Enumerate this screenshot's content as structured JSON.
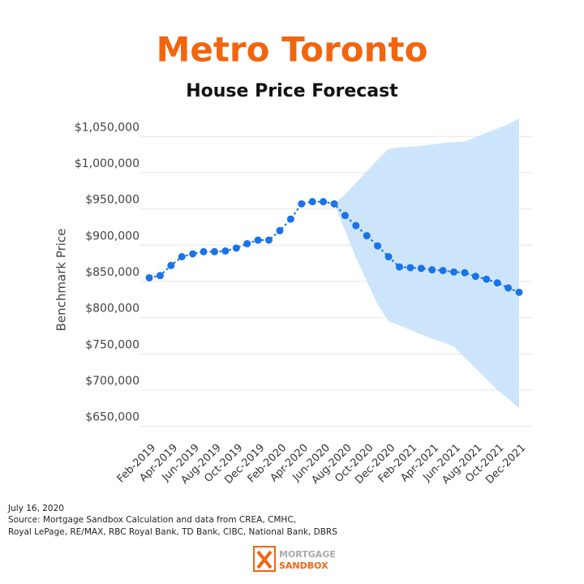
{
  "chart_data": {
    "type": "line",
    "title": "Metro Toronto",
    "subtitle": "House Price Forecast",
    "ylabel": "Benchmark Price",
    "categories": [
      "Feb-2019",
      null,
      "Apr-2019",
      null,
      "Jun-2019",
      null,
      "Aug-2019",
      null,
      "Oct-2019",
      null,
      "Dec-2019",
      null,
      "Feb-2020",
      null,
      "Apr-2020",
      null,
      "Jun-2020",
      null,
      "Aug-2020",
      null,
      "Oct-2020",
      null,
      "Dec-2020",
      null,
      "Feb-2021",
      null,
      "Apr-2021",
      null,
      "Jun-2021",
      null,
      "Aug-2021",
      null,
      "Oct-2021",
      null,
      "Dec-2021"
    ],
    "series": [
      {
        "color": "#1a73e8",
        "values": [
          855000,
          858000,
          872000,
          884000,
          888000,
          891000,
          891000,
          892000,
          896000,
          902000,
          907000,
          907000,
          920000,
          936000,
          957000,
          960000,
          960000,
          957000,
          941000,
          927000,
          913000,
          899000,
          884000,
          870000,
          869000,
          868000,
          866000,
          865000,
          863000,
          862000,
          857000,
          853000,
          848000,
          841000,
          835000
        ]
      }
    ],
    "band_color": "#cde5fb",
    "band_upper": [
      null,
      null,
      null,
      null,
      null,
      null,
      null,
      null,
      null,
      null,
      null,
      null,
      null,
      null,
      null,
      null,
      null,
      957000,
      970000,
      986000,
      1002000,
      1018000,
      1033000,
      1035000,
      1036000,
      1037000,
      1039000,
      1041000,
      1042000,
      1043000,
      1049000,
      1055000,
      1061000,
      1067000,
      1075000
    ],
    "band_lower": [
      null,
      null,
      null,
      null,
      null,
      null,
      null,
      null,
      null,
      null,
      null,
      null,
      null,
      null,
      null,
      null,
      null,
      957000,
      920000,
      883000,
      850000,
      818000,
      795000,
      789000,
      783000,
      777000,
      771000,
      766000,
      760000,
      745000,
      730000,
      715000,
      700000,
      688000,
      675000
    ],
    "ylim": [
      635000,
      1085000
    ],
    "yticks": [
      {
        "value": 650000,
        "label": "$650,000"
      },
      {
        "value": 700000,
        "label": "$700,000"
      },
      {
        "value": 750000,
        "label": "$750,000"
      },
      {
        "value": 800000,
        "label": "$800,000"
      },
      {
        "value": 850000,
        "label": "$850,000"
      },
      {
        "value": 900000,
        "label": "$900,000"
      },
      {
        "value": 950000,
        "label": "$950,000"
      },
      {
        "value": 1000000,
        "label": "$1,000,000"
      },
      {
        "value": 1050000,
        "label": "$1,050,000"
      }
    ],
    "grid": true,
    "date": "July 16, 2020",
    "source_lines": [
      "Source: Mortgage Sandbox Calculation and data from CREA, CMHC,",
      "Royal LePage, RE/MAX, RBC Royal Bank, TD Bank, CIBC, National Bank, DBRS"
    ],
    "logo": [
      "MORTGAGE",
      "SANDBOX"
    ]
  }
}
